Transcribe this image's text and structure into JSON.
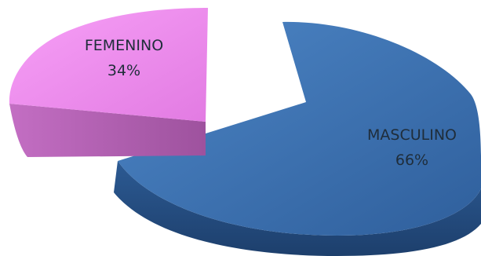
{
  "chart_data": {
    "type": "pie",
    "three_d": true,
    "exploded": true,
    "slices": [
      {
        "label": "FEMENINO",
        "value": 34,
        "percent_label": "34%",
        "color": "#ee82ee"
      },
      {
        "label": "MASCULINO",
        "value": 66,
        "percent_label": "66%",
        "color": "#3a6fb0"
      }
    ],
    "legend": "none",
    "data_labels": "inside"
  }
}
